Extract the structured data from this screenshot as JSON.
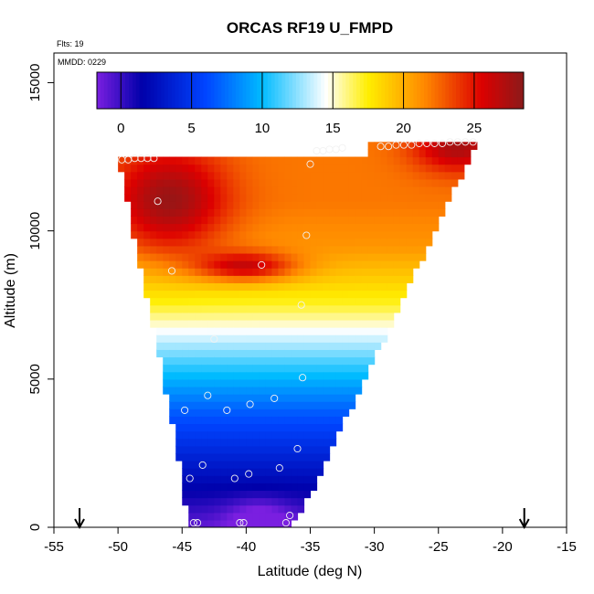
{
  "chart_data": {
    "type": "heatmap",
    "title": "ORCAS RF19 U_FMPD",
    "note_flts": "Flts: 19",
    "note_mmdd": "MMDD: 0229",
    "xlabel": "Latitude (deg N)",
    "ylabel": "Altitude (m)",
    "xlim": [
      -55,
      -15
    ],
    "ylim": [
      0,
      16000
    ],
    "x_ticks": [
      -55,
      -50,
      -45,
      -40,
      -35,
      -30,
      -25,
      -20,
      -15
    ],
    "y_ticks": [
      0,
      5000,
      10000,
      15000
    ],
    "colorbar": {
      "range": [
        -1.7,
        28.5
      ],
      "ticks": [
        0,
        5,
        10,
        15,
        20,
        25
      ],
      "colors": [
        "#7a1fe0",
        "#0000aa",
        "#0044ff",
        "#00bbff",
        "#ffffff",
        "#ffee00",
        "#ff8800",
        "#dd0000",
        "#8b1a1a"
      ],
      "stops": [
        -1.7,
        1.5,
        6.0,
        10.0,
        14.5,
        17.5,
        21.5,
        25.5,
        28.5
      ]
    },
    "domain_polygon": [
      {
        "lat": -50.0,
        "alt": 12500
      },
      {
        "lat": -30.5,
        "alt": 12500
      },
      {
        "lat": -30.5,
        "alt": 13000
      },
      {
        "lat": -22.0,
        "alt": 13000
      },
      {
        "lat": -36.0,
        "alt": 200
      },
      {
        "lat": -37.5,
        "alt": 0
      },
      {
        "lat": -44.5,
        "alt": 0
      },
      {
        "lat": -45.5,
        "alt": 3000
      }
    ],
    "profile": [
      {
        "alt": 0,
        "u": -1
      },
      {
        "alt": 1000,
        "u": 1
      },
      {
        "alt": 2500,
        "u": 4
      },
      {
        "alt": 4000,
        "u": 7
      },
      {
        "alt": 5500,
        "u": 11
      },
      {
        "alt": 6500,
        "u": 14
      },
      {
        "alt": 7500,
        "u": 17
      },
      {
        "alt": 8500,
        "u": 19
      },
      {
        "alt": 9500,
        "u": 21
      },
      {
        "alt": 11000,
        "u": 22
      },
      {
        "alt": 12500,
        "u": 22
      }
    ],
    "features": [
      {
        "lat": -46.0,
        "alt": 11000,
        "du": 6.0,
        "rlat": 4.5,
        "ralt": 1800
      },
      {
        "lat": -40.0,
        "alt": 8800,
        "du": 6.5,
        "rlat": 4.0,
        "ralt": 500
      },
      {
        "lat": -23.5,
        "alt": 12900,
        "du": 5.5,
        "rlat": 3.5,
        "ralt": 900
      },
      {
        "lat": -39.0,
        "alt": 300,
        "du": -2.5,
        "rlat": 2.5,
        "ralt": 700
      }
    ],
    "observations": [
      {
        "lat": -49.7,
        "alt": 12400
      },
      {
        "lat": -49.2,
        "alt": 12400
      },
      {
        "lat": -48.7,
        "alt": 12450
      },
      {
        "lat": -48.2,
        "alt": 12450
      },
      {
        "lat": -47.7,
        "alt": 12450
      },
      {
        "lat": -47.2,
        "alt": 12450
      },
      {
        "lat": -46.9,
        "alt": 11000
      },
      {
        "lat": -45.8,
        "alt": 8650
      },
      {
        "lat": -38.8,
        "alt": 8850
      },
      {
        "lat": -35.3,
        "alt": 9850
      },
      {
        "lat": -35.0,
        "alt": 12250
      },
      {
        "lat": -34.5,
        "alt": 12700
      },
      {
        "lat": -34.0,
        "alt": 12700
      },
      {
        "lat": -33.5,
        "alt": 12750
      },
      {
        "lat": -33.0,
        "alt": 12750
      },
      {
        "lat": -32.5,
        "alt": 12800
      },
      {
        "lat": -29.5,
        "alt": 12850
      },
      {
        "lat": -28.9,
        "alt": 12850
      },
      {
        "lat": -28.3,
        "alt": 12900
      },
      {
        "lat": -27.7,
        "alt": 12900
      },
      {
        "lat": -27.1,
        "alt": 12900
      },
      {
        "lat": -26.5,
        "alt": 12950
      },
      {
        "lat": -25.9,
        "alt": 12950
      },
      {
        "lat": -25.3,
        "alt": 12950
      },
      {
        "lat": -24.7,
        "alt": 12950
      },
      {
        "lat": -24.1,
        "alt": 13000
      },
      {
        "lat": -23.5,
        "alt": 13000
      },
      {
        "lat": -22.9,
        "alt": 13000
      },
      {
        "lat": -22.3,
        "alt": 13000
      },
      {
        "lat": -35.7,
        "alt": 7500
      },
      {
        "lat": -35.6,
        "alt": 5050
      },
      {
        "lat": -37.8,
        "alt": 4350
      },
      {
        "lat": -39.7,
        "alt": 4150
      },
      {
        "lat": -41.5,
        "alt": 3950
      },
      {
        "lat": -43.0,
        "alt": 4450
      },
      {
        "lat": -44.8,
        "alt": 3950
      },
      {
        "lat": -42.5,
        "alt": 6350
      },
      {
        "lat": -36.0,
        "alt": 2650
      },
      {
        "lat": -37.4,
        "alt": 2000
      },
      {
        "lat": -39.8,
        "alt": 1800
      },
      {
        "lat": -40.9,
        "alt": 1650
      },
      {
        "lat": -43.4,
        "alt": 2100
      },
      {
        "lat": -44.4,
        "alt": 1650
      },
      {
        "lat": -43.8,
        "alt": 150
      },
      {
        "lat": -44.1,
        "alt": 150
      },
      {
        "lat": -40.5,
        "alt": 150
      },
      {
        "lat": -40.2,
        "alt": 150
      },
      {
        "lat": -36.9,
        "alt": 150
      },
      {
        "lat": -36.6,
        "alt": 400
      }
    ],
    "arrows_lat": [
      -53.0,
      -18.3
    ]
  }
}
